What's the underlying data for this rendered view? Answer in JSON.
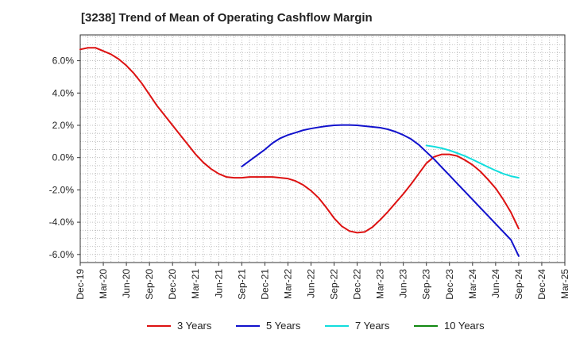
{
  "chart_data": {
    "type": "line",
    "title": "[3238]  Trend of Mean of Operating Cashflow Margin",
    "xlabel": "",
    "ylabel": "",
    "x_ticks": [
      "Dec-19",
      "Mar-20",
      "Jun-20",
      "Sep-20",
      "Dec-20",
      "Mar-21",
      "Jun-21",
      "Sep-21",
      "Dec-21",
      "Mar-22",
      "Jun-22",
      "Sep-22",
      "Dec-22",
      "Mar-23",
      "Jun-23",
      "Sep-23",
      "Dec-23",
      "Mar-24",
      "Jun-24",
      "Sep-24",
      "Dec-24",
      "Mar-25"
    ],
    "y_ticks": [
      6.0,
      4.0,
      2.0,
      0.0,
      -2.0,
      -4.0,
      -6.0
    ],
    "y_tick_labels": [
      "6.0%",
      "4.0%",
      "2.0%",
      "0.0%",
      "-2.0%",
      "-4.0%",
      "-6.0%"
    ],
    "ylim": [
      -6.5,
      7.6
    ],
    "grid": true,
    "legend_position": "bottom",
    "series": [
      {
        "name": "3 Years",
        "color": "#dd1111",
        "x": [
          "Dec-19",
          "Jan-20",
          "Feb-20",
          "Mar-20",
          "Apr-20",
          "May-20",
          "Jun-20",
          "Jul-20",
          "Aug-20",
          "Sep-20",
          "Oct-20",
          "Nov-20",
          "Dec-20",
          "Jan-21",
          "Feb-21",
          "Mar-21",
          "Apr-21",
          "May-21",
          "Jun-21",
          "Jul-21",
          "Aug-21",
          "Sep-21",
          "Oct-21",
          "Nov-21",
          "Dec-21",
          "Jan-22",
          "Feb-22",
          "Mar-22",
          "Apr-22",
          "May-22",
          "Jun-22",
          "Jul-22",
          "Aug-22",
          "Sep-22",
          "Oct-22",
          "Nov-22",
          "Dec-22",
          "Jan-23",
          "Feb-23",
          "Mar-23",
          "Apr-23",
          "May-23",
          "Jun-23",
          "Jul-23",
          "Aug-23",
          "Sep-23",
          "Oct-23",
          "Nov-23",
          "Dec-23",
          "Jan-24",
          "Feb-24",
          "Mar-24",
          "Apr-24",
          "May-24",
          "Jun-24",
          "Jul-24",
          "Aug-24",
          "Sep-24"
        ],
        "values": [
          6.7,
          6.8,
          6.8,
          6.6,
          6.4,
          6.1,
          5.7,
          5.2,
          4.6,
          3.9,
          3.2,
          2.6,
          2.0,
          1.4,
          0.8,
          0.2,
          -0.3,
          -0.7,
          -1.0,
          -1.2,
          -1.25,
          -1.25,
          -1.2,
          -1.2,
          -1.2,
          -1.2,
          -1.25,
          -1.3,
          -1.45,
          -1.7,
          -2.05,
          -2.5,
          -3.1,
          -3.75,
          -4.25,
          -4.55,
          -4.65,
          -4.6,
          -4.3,
          -3.85,
          -3.35,
          -2.8,
          -2.25,
          -1.65,
          -1.0,
          -0.35,
          0.05,
          0.2,
          0.2,
          0.1,
          -0.15,
          -0.45,
          -0.85,
          -1.35,
          -1.9,
          -2.6,
          -3.4,
          -4.4
        ]
      },
      {
        "name": "5 Years",
        "color": "#1111cc",
        "x": [
          "Sep-21",
          "Oct-21",
          "Nov-21",
          "Dec-21",
          "Jan-22",
          "Feb-22",
          "Mar-22",
          "Apr-22",
          "May-22",
          "Jun-22",
          "Jul-22",
          "Aug-22",
          "Sep-22",
          "Oct-22",
          "Nov-22",
          "Dec-22",
          "Jan-23",
          "Feb-23",
          "Mar-23",
          "Apr-23",
          "May-23",
          "Jun-23",
          "Jul-23",
          "Aug-23",
          "Sep-23",
          "Oct-23",
          "Nov-23",
          "Dec-23",
          "Jan-24",
          "Feb-24",
          "Mar-24",
          "Apr-24",
          "May-24",
          "Jun-24",
          "Jul-24",
          "Aug-24",
          "Sep-24"
        ],
        "values": [
          -0.55,
          -0.2,
          0.15,
          0.5,
          0.9,
          1.2,
          1.4,
          1.55,
          1.7,
          1.8,
          1.88,
          1.95,
          2.0,
          2.02,
          2.02,
          2.0,
          1.95,
          1.9,
          1.85,
          1.75,
          1.6,
          1.4,
          1.15,
          0.8,
          0.35,
          -0.1,
          -0.6,
          -1.1,
          -1.6,
          -2.1,
          -2.6,
          -3.1,
          -3.6,
          -4.1,
          -4.6,
          -5.1,
          -6.1
        ]
      },
      {
        "name": "7 Years",
        "color": "#11dddd",
        "x": [
          "Sep-23",
          "Oct-23",
          "Nov-23",
          "Dec-23",
          "Jan-24",
          "Feb-24",
          "Mar-24",
          "Apr-24",
          "May-24",
          "Jun-24",
          "Jul-24",
          "Aug-24",
          "Sep-24"
        ],
        "values": [
          0.75,
          0.68,
          0.58,
          0.45,
          0.28,
          0.1,
          -0.12,
          -0.35,
          -0.58,
          -0.8,
          -1.0,
          -1.15,
          -1.25
        ]
      },
      {
        "name": "10 Years",
        "color": "#118811",
        "x": [],
        "values": []
      }
    ]
  }
}
